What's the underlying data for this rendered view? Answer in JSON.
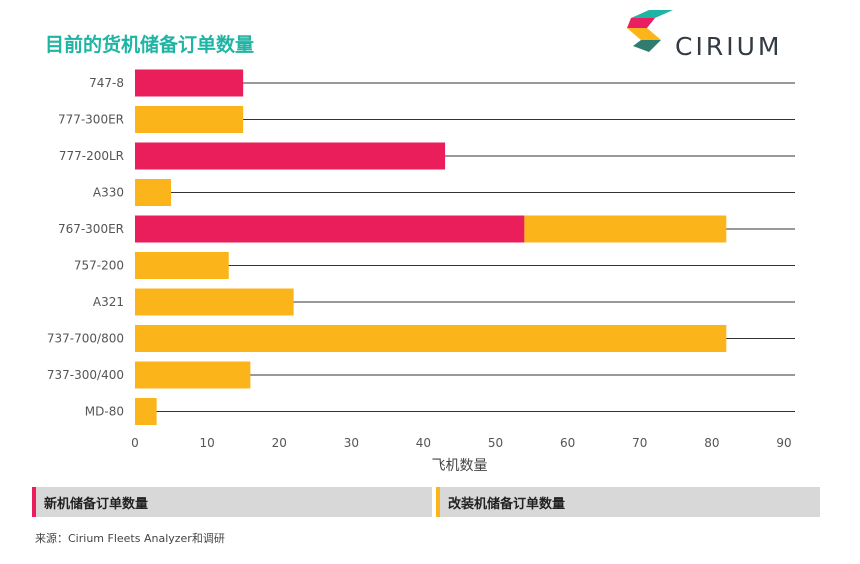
{
  "title": "目前的货机储备订单数量",
  "logo": {
    "text": "CIRIUM",
    "colors": [
      "#20b4a4",
      "#e91e63",
      "#fbb41a",
      "#2e7d6f"
    ]
  },
  "chart_data": {
    "type": "bar",
    "orientation": "horizontal",
    "stacked": true,
    "categories": [
      "747-8",
      "777-300ER",
      "777-200LR",
      "A330",
      "767-300ER",
      "757-200",
      "A321",
      "737-700/800",
      "737-300/400",
      "MD-80"
    ],
    "series": [
      {
        "name": "新机储备订单数量",
        "color": "#e91e5a",
        "values": [
          15,
          0,
          43,
          0,
          54,
          0,
          0,
          0,
          0,
          0
        ]
      },
      {
        "name": "改装机储备订单数量",
        "color": "#fbb41a",
        "values": [
          0,
          15,
          0,
          5,
          28,
          13,
          22,
          82,
          16,
          3
        ]
      }
    ],
    "xlabel": "飞机数量",
    "xlim": [
      0,
      90
    ],
    "xticks": [
      "0",
      "10",
      "20",
      "30",
      "40",
      "50",
      "60",
      "70",
      "80",
      "90"
    ],
    "grid": "horizontal guide line per category"
  },
  "legend": {
    "new": {
      "label": "新机储备订单数量",
      "color": "#e91e5a"
    },
    "converted": {
      "label": "改装机储备订单数量",
      "color": "#fbb41a"
    }
  },
  "source": "来源：Cirium Fleets Analyzer和调研"
}
